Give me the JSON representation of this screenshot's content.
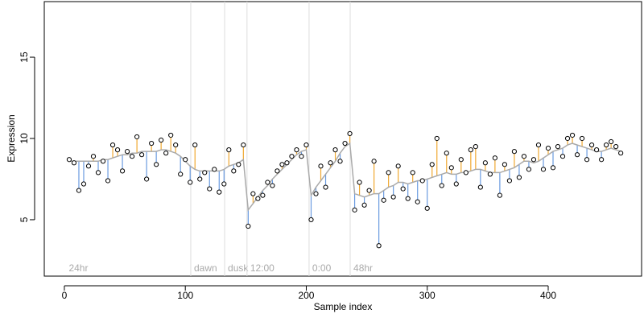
{
  "chart_data": {
    "type": "scatter",
    "x_label": "Sample index",
    "y_label": "Expression",
    "xlim": [
      -16.6,
      477.2
    ],
    "ylim": [
      1.53,
      18.42
    ],
    "xticks": [
      0,
      100,
      200,
      300,
      400
    ],
    "yticks": [
      5,
      10,
      15
    ],
    "above_color": "#f0a830",
    "below_color": "#6a9be0",
    "phases": [
      {
        "label": "24hr",
        "x": 1
      },
      {
        "label": "dawn",
        "x": 104.5
      },
      {
        "label": "dusk",
        "x": 132.5
      },
      {
        "label": "12:00",
        "x": 151
      },
      {
        "label": "0:00",
        "x": 202.3
      },
      {
        "label": "48hr",
        "x": 236.3
      }
    ],
    "x": [
      4,
      8,
      12,
      16,
      20,
      24,
      28,
      32,
      36,
      40,
      44,
      48,
      52,
      56,
      60,
      64,
      68,
      72,
      76,
      80,
      84,
      88,
      92,
      96,
      100,
      104,
      108,
      112,
      116,
      120,
      124,
      128,
      132,
      136,
      140,
      144,
      148,
      152,
      156,
      160,
      164,
      168,
      172,
      176,
      180,
      184,
      188,
      192,
      196,
      200,
      204,
      208,
      212,
      216,
      220,
      224,
      228,
      232,
      236,
      240,
      244,
      248,
      252,
      256,
      260,
      264,
      268,
      272,
      276,
      280,
      284,
      288,
      292,
      296,
      300,
      304,
      308,
      312,
      316,
      320,
      324,
      328,
      332,
      336,
      340,
      344,
      348,
      352,
      356,
      360,
      364,
      368,
      372,
      376,
      380,
      384,
      388,
      392,
      396,
      400,
      404,
      408,
      412,
      416,
      420,
      424,
      428,
      432,
      436,
      440,
      444,
      448,
      452,
      456,
      460
    ],
    "series": [
      {
        "color": "#000000",
        "values": [
          8.7,
          8.5,
          6.8,
          7.2,
          8.3,
          8.9,
          7.9,
          8.6,
          7.4,
          9.6,
          9.3,
          8.0,
          9.2,
          8.9,
          10.1,
          9.0,
          7.5,
          9.7,
          8.4,
          9.9,
          9.1,
          10.2,
          9.6,
          7.8,
          8.7,
          7.3,
          9.6,
          7.5,
          7.9,
          6.9,
          8.1,
          6.7,
          7.2,
          9.3,
          8.0,
          8.4,
          9.6,
          4.6,
          6.6,
          6.3,
          6.5,
          7.3,
          7.1,
          8.0,
          8.4,
          8.5,
          8.9,
          9.3,
          8.9,
          9.6,
          5.0,
          6.6,
          8.3,
          7.0,
          8.5,
          9.3,
          8.6,
          9.7,
          10.3,
          5.6,
          7.3,
          5.9,
          6.8,
          8.6,
          3.4,
          6.2,
          7.9,
          6.4,
          8.3,
          6.9,
          6.3,
          7.9,
          6.1,
          7.4,
          5.7,
          8.4,
          10.0,
          7.1,
          9.1,
          8.2,
          7.2,
          8.7,
          7.9,
          9.3,
          9.5,
          7.0,
          8.5,
          7.8,
          8.8,
          6.5,
          8.4,
          7.4,
          9.2,
          7.6,
          8.9,
          8.1,
          8.7,
          9.6,
          8.1,
          9.4,
          8.2,
          9.5,
          8.9,
          10.0,
          10.2,
          9.0,
          10.0,
          8.7,
          9.6,
          9.3,
          8.7,
          9.6,
          9.8,
          9.5,
          9.1
        ]
      },
      {
        "color": "#aaaaaa",
        "values": [
          8.6,
          8.6,
          8.6,
          8.6,
          8.6,
          8.6,
          8.6,
          8.7,
          8.7,
          8.8,
          8.9,
          9.0,
          9.0,
          9.1,
          9.1,
          9.2,
          9.2,
          9.2,
          9.2,
          9.3,
          9.3,
          9.2,
          9.1,
          8.9,
          8.6,
          8.3,
          8.1,
          8.0,
          8.0,
          8.0,
          8.0,
          8.0,
          8.1,
          8.3,
          8.4,
          8.5,
          8.7,
          5.6,
          6.0,
          6.4,
          6.8,
          7.1,
          7.5,
          7.8,
          8.1,
          8.4,
          8.7,
          9.0,
          9.2,
          9.3,
          6.5,
          7.0,
          7.4,
          7.8,
          8.2,
          8.6,
          9.1,
          9.5,
          9.7,
          6.6,
          6.5,
          6.4,
          6.5,
          6.6,
          6.6,
          6.8,
          7.0,
          7.1,
          7.3,
          7.3,
          7.2,
          7.3,
          7.4,
          7.4,
          7.5,
          7.6,
          7.7,
          7.8,
          7.9,
          7.8,
          7.8,
          7.9,
          7.9,
          8.0,
          8.1,
          8.1,
          8.0,
          7.9,
          7.9,
          7.9,
          8.0,
          8.1,
          8.2,
          8.4,
          8.6,
          8.6,
          8.5,
          8.6,
          8.8,
          9.0,
          9.2,
          9.3,
          9.4,
          9.6,
          9.7,
          9.6,
          9.5,
          9.4,
          9.3,
          9.2,
          9.2,
          9.3,
          9.4,
          9.3,
          9.2
        ]
      }
    ]
  }
}
